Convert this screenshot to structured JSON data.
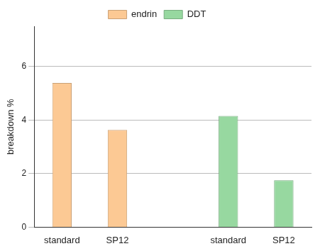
{
  "chart_data": {
    "type": "bar",
    "y_label": "breakdown %",
    "categories": [
      "standard",
      "SP12",
      null,
      "standard",
      "SP12"
    ],
    "series": [
      {
        "name": "endrin",
        "color": "#fcc994",
        "values": [
          5.38,
          3.63,
          null,
          null,
          null
        ]
      },
      {
        "name": "DDT",
        "color": "#97d8a0",
        "values": [
          null,
          null,
          null,
          4.15,
          1.75
        ]
      }
    ],
    "ylim": [
      0,
      7.5
    ],
    "yticks": [
      0,
      2,
      4,
      6
    ],
    "grid": true,
    "legend": "top"
  }
}
